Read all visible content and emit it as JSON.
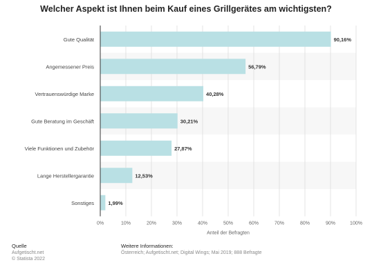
{
  "title": "Welcher Aspekt ist Ihnen beim Kauf eines Grillgerätes am wichtigsten?",
  "chart_data": {
    "type": "bar",
    "orientation": "horizontal",
    "categories": [
      "Gute Qualität",
      "Angemessener Preis",
      "Vertrauenswürdige Marke",
      "Gute Beratung im Geschäft",
      "Viele Funktionen und Zubehör",
      "Lange Herstellergarantie",
      "Sonstiges"
    ],
    "values": [
      90.16,
      56.79,
      40.28,
      30.21,
      27.87,
      12.53,
      1.99
    ],
    "value_labels": [
      "90,16%",
      "56,79%",
      "40,28%",
      "30,21%",
      "27,87%",
      "12,53%",
      "1,99%"
    ],
    "xlim": [
      0,
      100
    ],
    "xticks": [
      "0%",
      "10%",
      "20%",
      "30%",
      "40%",
      "50%",
      "60%",
      "70%",
      "80%",
      "90%",
      "100%"
    ],
    "xlabel": "Anteil der Befragten",
    "ylabel": "",
    "grid": true,
    "bar_color": "#b9e0e4",
    "stripe_color": "#f7f7f7"
  },
  "footer": {
    "source_heading": "Quelle",
    "source_lines": [
      "Aufgetischt.net",
      "© Statista 2022"
    ],
    "info_heading": "Weitere Informationen:",
    "info_text": "Österreich; Aufgetischt.net; Digital Wings; Mai 2019; 888 Befragte"
  }
}
